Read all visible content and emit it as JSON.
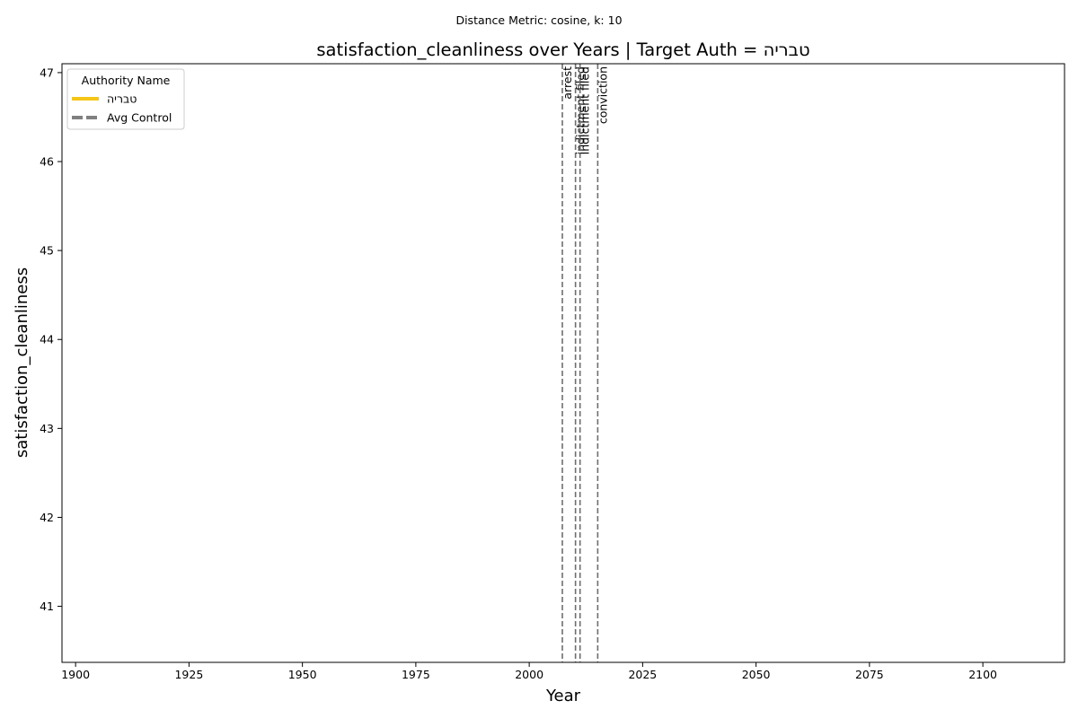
{
  "chart_data": {
    "type": "line",
    "suptitle": "Distance Metric: cosine, k: 10",
    "title": "satisfaction_cleanliness over Years | Target Auth = טבריה",
    "xlabel": "Year",
    "ylabel": "satisfaction_cleanliness",
    "xlim": [
      1897,
      2118
    ],
    "ylim": [
      40.37,
      47.1
    ],
    "xticks": [
      1900,
      1925,
      1950,
      1975,
      2000,
      2025,
      2050,
      2075,
      2100
    ],
    "yticks": [
      41,
      42,
      43,
      44,
      45,
      46,
      47
    ],
    "grid": false,
    "legend": {
      "title": "Authority Name",
      "placement": "top-left",
      "entries": [
        {
          "label": "טבריה",
          "color": "#f5c518",
          "style": "solid"
        },
        {
          "label": "Avg Control",
          "color": "#808080",
          "style": "dashed"
        }
      ]
    },
    "series": [
      {
        "name": "טבריה",
        "color": "#f5c518",
        "x": [],
        "y": []
      },
      {
        "name": "Avg Control",
        "color": "#808080",
        "x": [],
        "y": []
      }
    ],
    "events": [
      {
        "year": 2007.3,
        "label": "arrest"
      },
      {
        "year": 2010.2,
        "label": "indictment filed"
      },
      {
        "year": 2011.2,
        "label": "indictment filed"
      },
      {
        "year": 2015.1,
        "label": "conviction"
      }
    ]
  }
}
